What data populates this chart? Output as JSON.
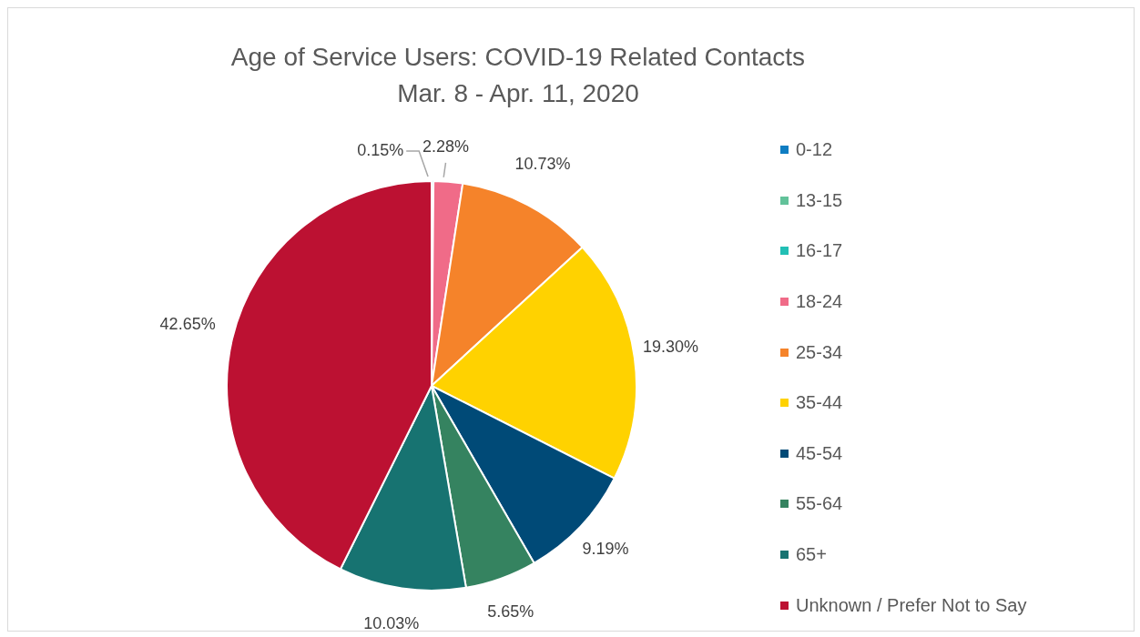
{
  "chart_data": {
    "type": "pie",
    "title": "Age of Service Users: COVID-19 Related Contacts",
    "subtitle": "Mar. 8 - Apr. 11, 2020",
    "categories": [
      "0-12",
      "13-15",
      "16-17",
      "18-24",
      "25-34",
      "35-44",
      "45-54",
      "55-64",
      "65+",
      "Unknown / Prefer Not to Say"
    ],
    "values": [
      0,
      0,
      0.15,
      2.28,
      10.73,
      19.3,
      9.19,
      5.65,
      10.03,
      42.65
    ],
    "value_labels": [
      null,
      null,
      "0.15%",
      "2.28%",
      "10.73%",
      "19.30%",
      "9.19%",
      "5.65%",
      "10.03%",
      "42.65%"
    ],
    "colors": [
      "#0f7dc2",
      "#62c29a",
      "#22bfb5",
      "#f06b88",
      "#f5832a",
      "#ffd200",
      "#004a77",
      "#358360",
      "#177371",
      "#bc1132"
    ],
    "legend": "right"
  }
}
